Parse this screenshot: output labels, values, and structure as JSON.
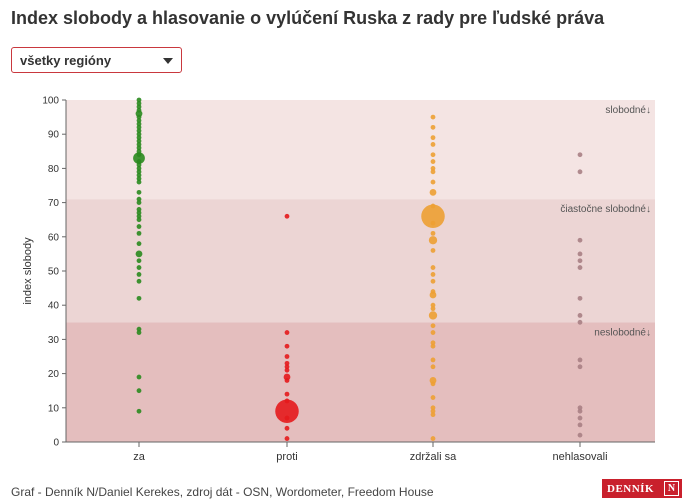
{
  "title": "Index slobody a hlasovanie o vylúčení Ruska z rady pre ľudské práva",
  "filter": {
    "selected": "všetky regióny"
  },
  "footer": {
    "credit": "Graf - Denník N/Daniel Kerekes, zdroj dát - OSN, Wordometer, Freedom House"
  },
  "logo": {
    "text": "DENNÍK",
    "mark": "N"
  },
  "colors": {
    "za": "#2a8a1e",
    "proti": "#e41a1c",
    "zdrzali": "#eda033",
    "nehlasovali": "#a87f84",
    "band_free": "#f4e4e3",
    "band_partly": "#ecd5d4",
    "band_notfree": "#e4bebe"
  },
  "chart_data": {
    "type": "scatter",
    "title": "",
    "xlabel": "",
    "ylabel": "index slobody",
    "ylim": [
      0,
      100
    ],
    "yticks": [
      0,
      10,
      20,
      30,
      40,
      50,
      60,
      70,
      80,
      90,
      100
    ],
    "categories": [
      "za",
      "proti",
      "zdržali sa",
      "nehlasovali"
    ],
    "grid": false,
    "bands": [
      {
        "label": "slobodné↓",
        "from": 71,
        "to": 100
      },
      {
        "label": "čiastočne slobodné↓",
        "from": 35,
        "to": 71
      },
      {
        "label": "neslobodné↓",
        "from": 0,
        "to": 35
      }
    ],
    "series": [
      {
        "category": "za",
        "points": [
          [
            100,
            1
          ],
          [
            99,
            1
          ],
          [
            98,
            1
          ],
          [
            97,
            1
          ],
          [
            96,
            2
          ],
          [
            95,
            1
          ],
          [
            94,
            1
          ],
          [
            93,
            1
          ],
          [
            92,
            1
          ],
          [
            91,
            1
          ],
          [
            90,
            1
          ],
          [
            89,
            1
          ],
          [
            88,
            1
          ],
          [
            87,
            1
          ],
          [
            86,
            1
          ],
          [
            85,
            1
          ],
          [
            84,
            1
          ],
          [
            83,
            6
          ],
          [
            82,
            1
          ],
          [
            81,
            1
          ],
          [
            80,
            1
          ],
          [
            79,
            1
          ],
          [
            78,
            1
          ],
          [
            77,
            1
          ],
          [
            76,
            1
          ],
          [
            73,
            1
          ],
          [
            71,
            1
          ],
          [
            70,
            1
          ],
          [
            68,
            1
          ],
          [
            67,
            1
          ],
          [
            66,
            1
          ],
          [
            65,
            1
          ],
          [
            63,
            1
          ],
          [
            61,
            1
          ],
          [
            58,
            1
          ],
          [
            55,
            2
          ],
          [
            53,
            1
          ],
          [
            51,
            1
          ],
          [
            49,
            1
          ],
          [
            47,
            1
          ],
          [
            42,
            1
          ],
          [
            33,
            1
          ],
          [
            32,
            1
          ],
          [
            19,
            1
          ],
          [
            15,
            1
          ],
          [
            9,
            1
          ]
        ]
      },
      {
        "category": "proti",
        "points": [
          [
            66,
            1
          ],
          [
            32,
            1
          ],
          [
            28,
            1
          ],
          [
            25,
            1
          ],
          [
            23,
            1
          ],
          [
            22,
            1
          ],
          [
            21,
            1
          ],
          [
            19,
            2
          ],
          [
            18,
            1
          ],
          [
            14,
            1
          ],
          [
            12,
            1
          ],
          [
            9,
            24
          ],
          [
            7,
            1
          ],
          [
            4,
            1
          ],
          [
            1,
            1
          ]
        ]
      },
      {
        "category": "zdržali sa",
        "points": [
          [
            95,
            1
          ],
          [
            92,
            1
          ],
          [
            89,
            1
          ],
          [
            87,
            1
          ],
          [
            84,
            1
          ],
          [
            82,
            1
          ],
          [
            80,
            1
          ],
          [
            79,
            1
          ],
          [
            76,
            1
          ],
          [
            73,
            2
          ],
          [
            69,
            1
          ],
          [
            66,
            24
          ],
          [
            64,
            1
          ],
          [
            61,
            1
          ],
          [
            59,
            3
          ],
          [
            56,
            1
          ],
          [
            51,
            1
          ],
          [
            49,
            1
          ],
          [
            47,
            1
          ],
          [
            44,
            1
          ],
          [
            43,
            2
          ],
          [
            40,
            1
          ],
          [
            39,
            1
          ],
          [
            37,
            3
          ],
          [
            34,
            1
          ],
          [
            32,
            1
          ],
          [
            29,
            1
          ],
          [
            28,
            1
          ],
          [
            24,
            1
          ],
          [
            22,
            1
          ],
          [
            18,
            2
          ],
          [
            17,
            1
          ],
          [
            13,
            1
          ],
          [
            10,
            1
          ],
          [
            9,
            1
          ],
          [
            8,
            1
          ],
          [
            1,
            1
          ]
        ]
      },
      {
        "category": "nehlasovali",
        "points": [
          [
            84,
            1
          ],
          [
            79,
            1
          ],
          [
            59,
            1
          ],
          [
            55,
            1
          ],
          [
            53,
            1
          ],
          [
            51,
            1
          ],
          [
            42,
            1
          ],
          [
            37,
            1
          ],
          [
            35,
            1
          ],
          [
            24,
            1
          ],
          [
            22,
            1
          ],
          [
            10,
            1
          ],
          [
            9,
            1
          ],
          [
            7,
            1
          ],
          [
            5,
            1
          ],
          [
            2,
            1
          ]
        ]
      }
    ]
  }
}
